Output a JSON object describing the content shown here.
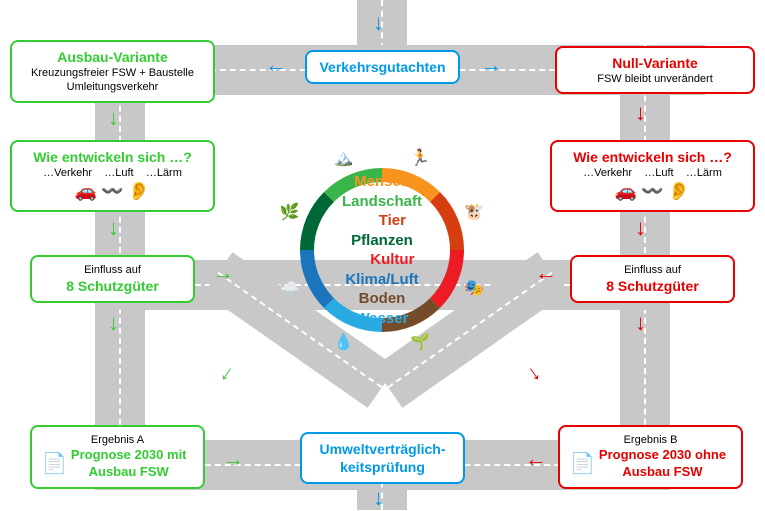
{
  "colors": {
    "blue": "#0099e6",
    "green": "#33cc33",
    "red": "#e60000",
    "road": "#c8c8c8"
  },
  "top": {
    "gutachten": "Verkehrsgutachten"
  },
  "left": {
    "variant_title": "Ausbau-Variante",
    "variant_sub1": "Kreuzungsfreier FSW + Baustelle",
    "variant_sub2": "Umleitungsverkehr",
    "q_title": "Wie entwickeln sich …?",
    "q_sub": "…Verkehr    …Luft    …Lärm",
    "einfluss_pre": "Einfluss auf",
    "einfluss": "8 Schutzgüter",
    "erg_pre": "Ergebnis A",
    "erg1": "Prognose 2030 mit",
    "erg2": "Ausbau FSW"
  },
  "right": {
    "variant_title": "Null-Variante",
    "variant_sub1": "FSW bleibt unverändert",
    "q_title": "Wie entwickeln sich …?",
    "q_sub": "…Verkehr    …Luft    …Lärm",
    "einfluss_pre": "Einfluss auf",
    "einfluss": "8 Schutzgüter",
    "erg_pre": "Ergebnis B",
    "erg1": "Prognose 2030 ohne",
    "erg2": "Ausbau FSW"
  },
  "bottom": {
    "uvp1": "Umweltverträglich-",
    "uvp2": "keitsprüfung"
  },
  "ring": {
    "labels": [
      {
        "text": "Mensch",
        "color": "#f7941d"
      },
      {
        "text": "Landschaft",
        "color": "#39b54a"
      },
      {
        "text": " Tier",
        "color": "#d63d0f",
        "indent": true
      },
      {
        "text": "Pflanzen",
        "color": "#006837"
      },
      {
        "text": " Kultur",
        "color": "#ed1c24",
        "indent": true
      },
      {
        "text": "Klima/Luft",
        "color": "#1b75bc"
      },
      {
        "text": "Boden",
        "color": "#754c29"
      },
      {
        "text": "Wasser",
        "color": "#29abe2"
      }
    ],
    "segments": [
      "#f7941d",
      "#d63d0f",
      "#ed1c24",
      "#754c29",
      "#29abe2",
      "#1b75bc",
      "#006837",
      "#39b54a"
    ],
    "icons": [
      "🏃",
      "🐮",
      "🎭",
      "🌱",
      "💧",
      "☁️",
      "🌿",
      "🏔️"
    ]
  }
}
